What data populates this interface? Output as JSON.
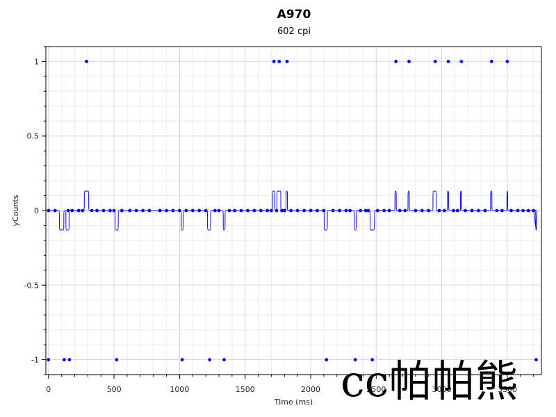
{
  "chart_data": {
    "type": "line",
    "title": "A970",
    "subtitle": "602 cpi",
    "xlabel": "Time (ms)",
    "ylabel": "yCounts",
    "xlim": [
      -20,
      3760
    ],
    "ylim": [
      -1.1,
      1.1
    ],
    "x_ticks": [
      0,
      500,
      1000,
      1500,
      2000,
      2500,
      3000,
      3500
    ],
    "x_tick_labels": [
      "0",
      "500",
      "1000",
      "1500",
      "2000",
      "2500",
      "3000",
      "3500"
    ],
    "y_ticks": [
      1,
      0.5,
      0,
      -0.5,
      -1
    ],
    "y_tick_labels": [
      "1",
      "0.5",
      "0",
      "-0.5",
      "-1"
    ],
    "grid": true,
    "series": [
      {
        "color": "#0000ff",
        "points": [
          [
            0,
            -1
          ],
          [
            120,
            -1
          ],
          [
            160,
            -1
          ],
          [
            290,
            1
          ],
          [
            520,
            -1
          ],
          [
            1020,
            -1
          ],
          [
            1230,
            -1
          ],
          [
            1340,
            -1
          ],
          [
            1720,
            1
          ],
          [
            1760,
            1
          ],
          [
            1820,
            1
          ],
          [
            2120,
            -1
          ],
          [
            2340,
            -1
          ],
          [
            2470,
            -1
          ],
          [
            2650,
            1
          ],
          [
            2750,
            1
          ],
          [
            2950,
            1
          ],
          [
            3050,
            1
          ],
          [
            3150,
            1
          ],
          [
            3380,
            1
          ],
          [
            3500,
            1
          ],
          [
            3720,
            -1
          ]
        ],
        "zero_points_x": [
          0,
          50,
          150,
          180,
          230,
          260,
          330,
          370,
          420,
          470,
          500,
          560,
          620,
          670,
          720,
          770,
          850,
          900,
          950,
          1000,
          1050,
          1100,
          1150,
          1200,
          1270,
          1300,
          1380,
          1420,
          1470,
          1520,
          1570,
          1620,
          1670,
          1700,
          1740,
          1780,
          1800,
          1850,
          1900,
          1950,
          2000,
          2050,
          2100,
          2170,
          2220,
          2270,
          2300,
          2380,
          2420,
          2440,
          2510,
          2560,
          2600,
          2680,
          2720,
          2800,
          2850,
          2900,
          2980,
          3020,
          3090,
          3120,
          3180,
          3230,
          3280,
          3330,
          3420,
          3460,
          3530,
          3580,
          3620,
          3660,
          3700
        ],
        "line_excursions": [
          {
            "x0": 80,
            "x1": 120,
            "y": -0.13
          },
          {
            "x0": 130,
            "x1": 160,
            "y": -0.13
          },
          {
            "x0": 270,
            "x1": 310,
            "y": 0.13
          },
          {
            "x0": 505,
            "x1": 535,
            "y": -0.13
          },
          {
            "x0": 1010,
            "x1": 1030,
            "y": -0.13
          },
          {
            "x0": 1210,
            "x1": 1240,
            "y": -0.13
          },
          {
            "x0": 1330,
            "x1": 1350,
            "y": -0.13
          },
          {
            "x0": 1705,
            "x1": 1730,
            "y": 0.13
          },
          {
            "x0": 1740,
            "x1": 1775,
            "y": 0.13
          },
          {
            "x0": 1810,
            "x1": 1825,
            "y": 0.13
          },
          {
            "x0": 2100,
            "x1": 2130,
            "y": -0.13
          },
          {
            "x0": 2330,
            "x1": 2350,
            "y": -0.13
          },
          {
            "x0": 2450,
            "x1": 2490,
            "y": -0.13
          },
          {
            "x0": 2640,
            "x1": 2655,
            "y": 0.13
          },
          {
            "x0": 2740,
            "x1": 2755,
            "y": 0.13
          },
          {
            "x0": 2930,
            "x1": 2960,
            "y": 0.13
          },
          {
            "x0": 3040,
            "x1": 3055,
            "y": 0.13
          },
          {
            "x0": 3140,
            "x1": 3155,
            "y": 0.13
          },
          {
            "x0": 3370,
            "x1": 3385,
            "y": 0.13
          },
          {
            "x0": 3495,
            "x1": 3505,
            "y": 0.13
          },
          {
            "x0": 3715,
            "x1": 3725,
            "y": -0.13
          }
        ]
      }
    ]
  },
  "watermark": {
    "text": "cc帕帕熊"
  }
}
